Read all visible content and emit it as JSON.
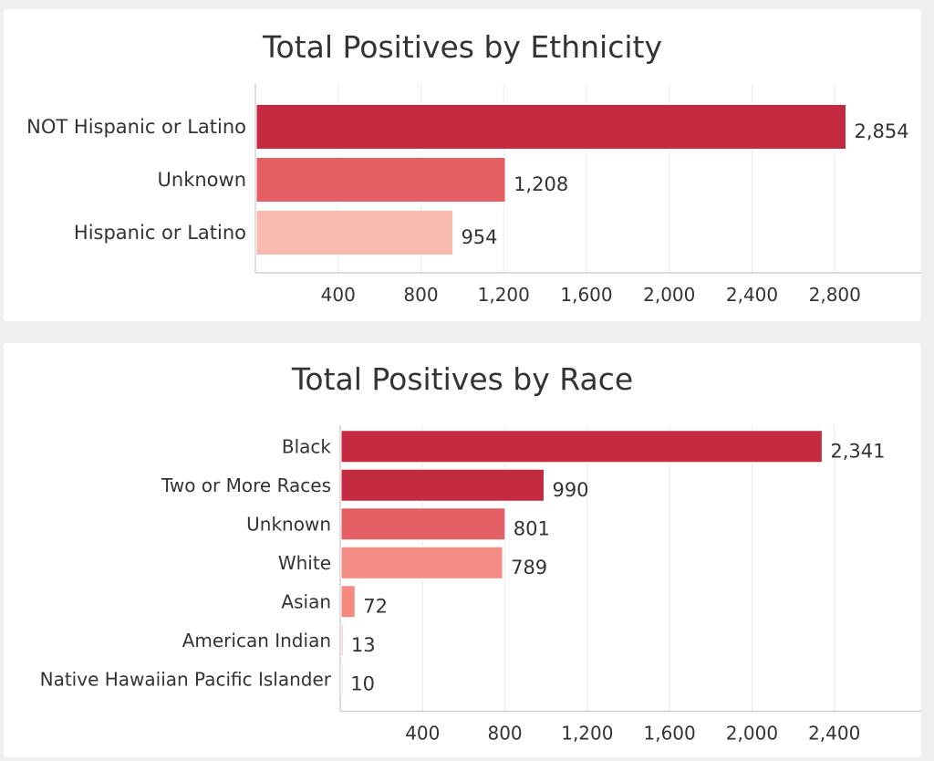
{
  "chart_data": [
    {
      "type": "bar",
      "orientation": "horizontal",
      "title": "Total Positives by Ethnicity",
      "categories": [
        "NOT Hispanic or Latino",
        "Unknown",
        "Hispanic or Latino"
      ],
      "values": [
        2854,
        1208,
        954
      ],
      "value_labels": [
        "2,854",
        "1,208",
        "954"
      ],
      "colors": [
        "#c42b41",
        "#e56065",
        "#f8b9ae"
      ],
      "xlim": [
        0,
        3200
      ],
      "xticks": [
        400,
        800,
        1200,
        1600,
        2000,
        2400,
        2800
      ],
      "xtick_labels": [
        "400",
        "800",
        "1,200",
        "1,600",
        "2,000",
        "2,400",
        "2,800"
      ],
      "grid": true,
      "legend": "none"
    },
    {
      "type": "bar",
      "orientation": "horizontal",
      "title": "Total Positives by Race",
      "categories": [
        "Black",
        "Two or More Races",
        "Unknown",
        "White",
        "Asian",
        "American Indian",
        "Native Hawaiian Pacific Islander"
      ],
      "values": [
        2341,
        990,
        801,
        789,
        72,
        13,
        10
      ],
      "value_labels": [
        "2,341",
        "990",
        "801",
        "789",
        "72",
        "13",
        "10"
      ],
      "colors": [
        "#c42b41",
        "#c42b41",
        "#e56065",
        "#f28c84",
        "#f58a80",
        "#f8b9ae",
        "#fde1dc"
      ],
      "xlim": [
        0,
        2800
      ],
      "xticks": [
        400,
        800,
        1200,
        1600,
        2000,
        2400
      ],
      "xtick_labels": [
        "400",
        "800",
        "1,200",
        "1,600",
        "2,000",
        "2,400"
      ],
      "grid": true,
      "legend": "none"
    }
  ]
}
